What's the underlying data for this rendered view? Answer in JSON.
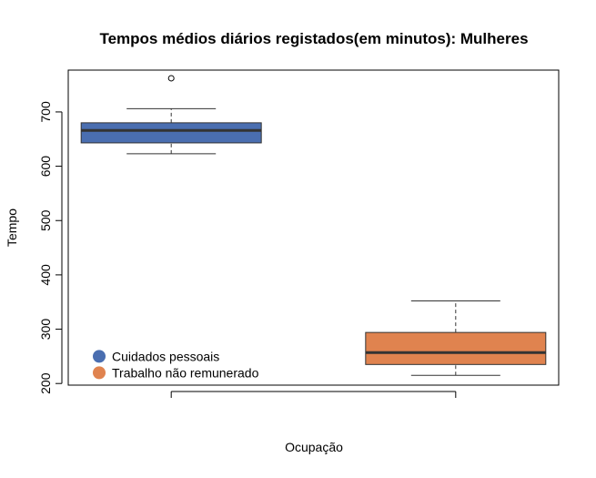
{
  "chart_data": {
    "type": "boxplot",
    "title": "Tempos médios diários registados(em minutos): Mulheres",
    "xlabel": "Ocupação",
    "ylabel": "Tempo",
    "ylim": [
      197,
      777
    ],
    "yticks": [
      200,
      300,
      400,
      500,
      600,
      700
    ],
    "categories": [
      "Cuidados pessoais",
      "Trabalho não remunerado"
    ],
    "series": [
      {
        "name": "Cuidados pessoais",
        "color": "#4a6eb0",
        "whisker_low": 623,
        "q1": 643,
        "median": 666,
        "q3": 680,
        "whisker_high": 706,
        "outliers": [
          762
        ]
      },
      {
        "name": "Trabalho não remunerado",
        "color": "#e0834f",
        "whisker_low": 215,
        "q1": 235,
        "median": 257,
        "q3": 294,
        "whisker_high": 352,
        "outliers": []
      }
    ],
    "legend": {
      "position": "bottom-left",
      "entries": [
        "Cuidados pessoais",
        "Trabalho não remunerado"
      ]
    },
    "grid": false
  }
}
